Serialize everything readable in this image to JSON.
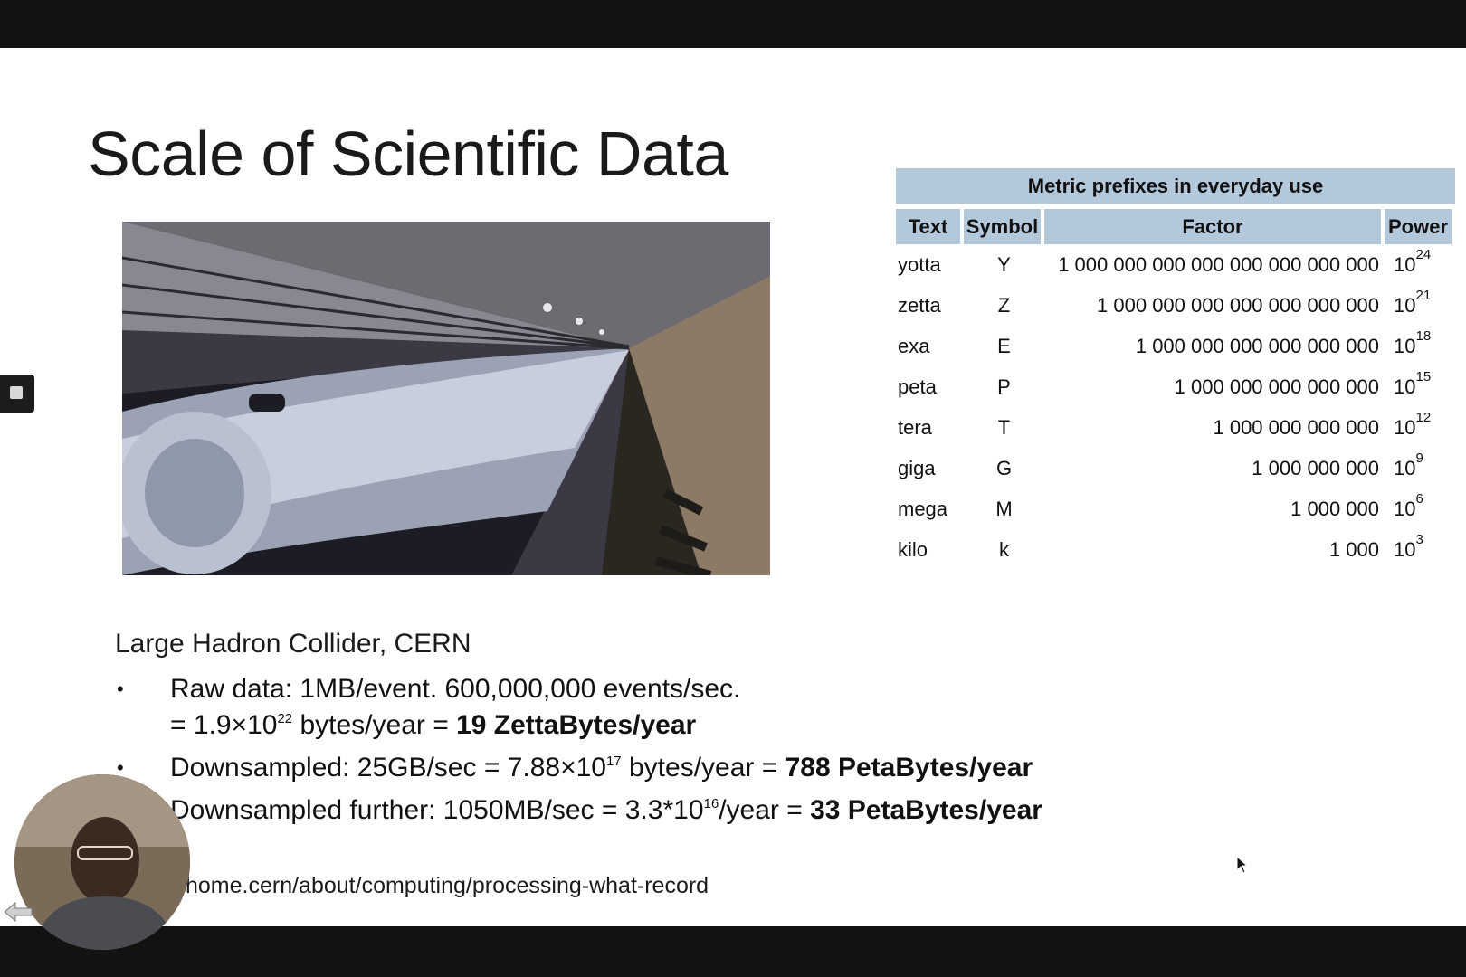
{
  "slide": {
    "title": "Scale of Scientific Data",
    "caption": "Large Hadron Collider, CERN",
    "bullets": [
      {
        "pre": "Raw data: 1MB/event. 600,000,000 events/sec.",
        "line2_pre": "= 1.9×10",
        "line2_exp": "22",
        "line2_mid": " bytes/year = ",
        "line2_bold": "19 ZettaBytes/year"
      },
      {
        "pre": "Downsampled: 25GB/sec = 7.88×10",
        "exp": "17",
        "mid": " bytes/year = ",
        "bold": "788 PetaBytes/year"
      },
      {
        "pre": "Downsampled further: 1050MB/sec = 3.3*10",
        "exp": "16",
        "mid": "/year = ",
        "bold": "33 PetaBytes/year"
      }
    ],
    "bullet_marker": "•",
    "link": "home.cern/about/computing/processing-what-record"
  },
  "table": {
    "caption": "Metric prefixes in everyday use",
    "headers": [
      "Text",
      "Symbol",
      "Factor",
      "Power"
    ],
    "rows": [
      {
        "text": "yotta",
        "symbol": "Y",
        "factor": "1 000 000 000 000 000 000 000 000",
        "base": "10",
        "exp": "24"
      },
      {
        "text": "zetta",
        "symbol": "Z",
        "factor": "1 000 000 000 000 000 000 000",
        "base": "10",
        "exp": "21"
      },
      {
        "text": "exa",
        "symbol": "E",
        "factor": "1 000 000 000 000 000 000",
        "base": "10",
        "exp": "18"
      },
      {
        "text": "peta",
        "symbol": "P",
        "factor": "1 000 000 000 000 000",
        "base": "10",
        "exp": "15"
      },
      {
        "text": "tera",
        "symbol": "T",
        "factor": "1 000 000 000 000",
        "base": "10",
        "exp": "12"
      },
      {
        "text": "giga",
        "symbol": "G",
        "factor": "1 000 000 000",
        "base": "10",
        "exp": "9"
      },
      {
        "text": "mega",
        "symbol": "M",
        "factor": "1 000 000",
        "base": "10",
        "exp": "6"
      },
      {
        "text": "kilo",
        "symbol": "k",
        "factor": "1 000",
        "base": "10",
        "exp": "3"
      }
    ]
  },
  "colors": {
    "table_header": "#b4c8dc",
    "frame": "#121212"
  },
  "icons": {
    "side_button": "stop-square-icon",
    "back": "back-arrow-icon",
    "cursor": "mouse-cursor-icon"
  }
}
